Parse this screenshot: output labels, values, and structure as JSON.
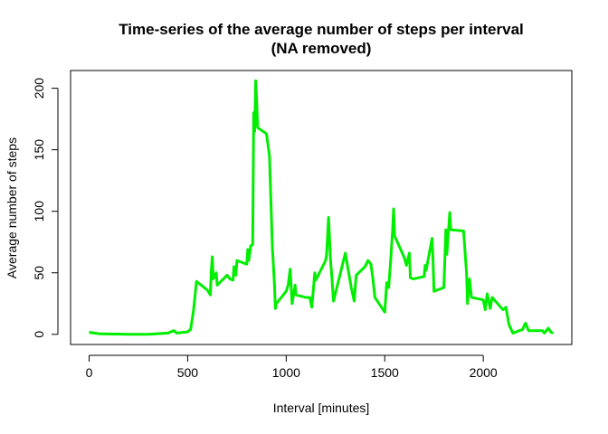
{
  "chart_data": {
    "type": "line",
    "title": [
      "Time-series of the average number of steps per interval",
      "(NA removed)"
    ],
    "x_label": "Interval [minutes]",
    "y_label": "Average number of steps",
    "color": "#00ee00",
    "x": [
      0,
      50,
      100,
      150,
      200,
      300,
      400,
      430,
      445,
      500,
      515,
      530,
      545,
      600,
      615,
      620,
      625,
      630,
      645,
      650,
      700,
      715,
      730,
      735,
      745,
      750,
      800,
      805,
      810,
      820,
      830,
      835,
      840,
      845,
      850,
      855,
      900,
      915,
      930,
      940,
      945,
      950,
      1000,
      1010,
      1020,
      1030,
      1045,
      1050,
      1100,
      1120,
      1130,
      1145,
      1150,
      1200,
      1205,
      1215,
      1225,
      1230,
      1240,
      1300,
      1330,
      1345,
      1355,
      1400,
      1415,
      1430,
      1440,
      1450,
      1500,
      1510,
      1520,
      1530,
      1540,
      1545,
      1550,
      1600,
      1610,
      1625,
      1630,
      1645,
      1700,
      1705,
      1710,
      1740,
      1745,
      1750,
      1800,
      1810,
      1815,
      1830,
      1835,
      1900,
      1915,
      1920,
      1930,
      1940,
      2000,
      2010,
      2020,
      2035,
      2045,
      2100,
      2115,
      2130,
      2150,
      2200,
      2210,
      2215,
      2230,
      2300,
      2310,
      2330,
      2345,
      2355
    ],
    "values": [
      1.7,
      0.5,
      0.3,
      0.2,
      0,
      0,
      1,
      3,
      1,
      2,
      4,
      20,
      43,
      36,
      32,
      52,
      63,
      45,
      50,
      40,
      48,
      45,
      44,
      55,
      48,
      60,
      57,
      69,
      60,
      72,
      73,
      180,
      165,
      206,
      190,
      168,
      163,
      145,
      70,
      42,
      21,
      25,
      35,
      40,
      53,
      25,
      40,
      32,
      30,
      30,
      22,
      50,
      44,
      60,
      65,
      95,
      60,
      50,
      27,
      66,
      38,
      27,
      48,
      55,
      60,
      57,
      45,
      30,
      18,
      42,
      38,
      60,
      85,
      102,
      80,
      62,
      56,
      66,
      46,
      45,
      47,
      56,
      52,
      78,
      60,
      35,
      38,
      85,
      65,
      99,
      85,
      84,
      50,
      25,
      45,
      30,
      28,
      20,
      33,
      21,
      30,
      20,
      22,
      8,
      1,
      4,
      8,
      9,
      3,
      3,
      1,
      5,
      1.5,
      1.1
    ],
    "xlim": [
      -94.2,
      2449.2
    ],
    "ylim": [
      -8.25,
      214.4
    ],
    "xticks": [
      0,
      500,
      1000,
      1500,
      2000
    ],
    "yticks": [
      0,
      50,
      100,
      150,
      200
    ]
  }
}
